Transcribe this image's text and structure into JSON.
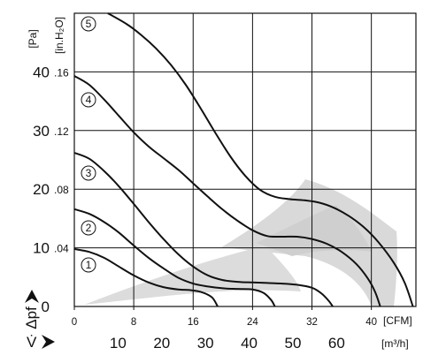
{
  "chart_data": {
    "type": "line",
    "x_axis": {
      "unit_cfm": "[CFM]",
      "ticks_cfm": [
        "0",
        "8",
        "16",
        "24",
        "32",
        "40"
      ],
      "symbol": "V̇",
      "unit_m3h": "[m³/h]",
      "ticks_m3h": [
        "10",
        "20",
        "30",
        "40",
        "50",
        "60"
      ],
      "xlim_cfm": [
        0,
        46
      ]
    },
    "y_axis": {
      "unit_pa": "[Pa]",
      "ticks_pa": [
        "0",
        "10",
        "20",
        "30",
        "40"
      ],
      "unit_inh2o": "[in.H₂O]",
      "ticks_inh2o": [
        ".04",
        ".08",
        ".12",
        ".16"
      ],
      "symbol": "Δpf",
      "ylim_pa": [
        0,
        50
      ]
    },
    "grid": true,
    "series": [
      {
        "name": "1",
        "points": [
          [
            0,
            9.8
          ],
          [
            2,
            9.3
          ],
          [
            4,
            8.3
          ],
          [
            6,
            6.8
          ],
          [
            8,
            5.3
          ],
          [
            10,
            4.1
          ],
          [
            12,
            3.3
          ],
          [
            14,
            2.9
          ],
          [
            15.5,
            2.8
          ],
          [
            17,
            2.5
          ],
          [
            18.5,
            1.6
          ],
          [
            19.3,
            0
          ]
        ]
      },
      {
        "name": "2",
        "points": [
          [
            0,
            16.6
          ],
          [
            2,
            15.8
          ],
          [
            4,
            14.4
          ],
          [
            6,
            12.6
          ],
          [
            8,
            10.4
          ],
          [
            10,
            8.3
          ],
          [
            12,
            6.5
          ],
          [
            14,
            4.9
          ],
          [
            16,
            3.9
          ],
          [
            18,
            3.4
          ],
          [
            20,
            3.1
          ],
          [
            22,
            3.0
          ],
          [
            24,
            2.9
          ],
          [
            25.5,
            2.3
          ],
          [
            26.5,
            1.1
          ],
          [
            27,
            0
          ]
        ]
      },
      {
        "name": "3",
        "points": [
          [
            0,
            26.2
          ],
          [
            2,
            25.2
          ],
          [
            4,
            23.1
          ],
          [
            6,
            20.5
          ],
          [
            8,
            17.5
          ],
          [
            10,
            14.4
          ],
          [
            12,
            11.5
          ],
          [
            14,
            8.9
          ],
          [
            16,
            6.8
          ],
          [
            18,
            5.3
          ],
          [
            20,
            4.5
          ],
          [
            22,
            4.2
          ],
          [
            24,
            4.1
          ],
          [
            26,
            4.0
          ],
          [
            28,
            3.9
          ],
          [
            30,
            3.7
          ],
          [
            32,
            3.2
          ],
          [
            33.3,
            2.2
          ],
          [
            34.3,
            0.9
          ],
          [
            34.8,
            0
          ]
        ]
      },
      {
        "name": "4",
        "points": [
          [
            0,
            39.3
          ],
          [
            2,
            37.8
          ],
          [
            4,
            35.3
          ],
          [
            6,
            32.5
          ],
          [
            8,
            29.7
          ],
          [
            10,
            27.3
          ],
          [
            12,
            25.3
          ],
          [
            14,
            23.3
          ],
          [
            16,
            21.0
          ],
          [
            18,
            18.7
          ],
          [
            20,
            16.5
          ],
          [
            22,
            14.6
          ],
          [
            24,
            13.0
          ],
          [
            26,
            12.0
          ],
          [
            28,
            11.9
          ],
          [
            30,
            11.9
          ],
          [
            32,
            11.5
          ],
          [
            34,
            10.7
          ],
          [
            36,
            9.3
          ],
          [
            38,
            7.2
          ],
          [
            39.5,
            4.8
          ],
          [
            40.5,
            2.5
          ],
          [
            41.2,
            0
          ]
        ]
      },
      {
        "name": "5",
        "points": [
          [
            4.5,
            50
          ],
          [
            7,
            48.2
          ],
          [
            9,
            46.3
          ],
          [
            11,
            44.0
          ],
          [
            13,
            41.2
          ],
          [
            15,
            37.8
          ],
          [
            17,
            33.8
          ],
          [
            19,
            29.6
          ],
          [
            21,
            25.6
          ],
          [
            23,
            22.3
          ],
          [
            25,
            19.9
          ],
          [
            27,
            18.7
          ],
          [
            29,
            18.3
          ],
          [
            31,
            18.1
          ],
          [
            33,
            17.7
          ],
          [
            35,
            16.8
          ],
          [
            37,
            15.4
          ],
          [
            39,
            13.5
          ],
          [
            41,
            10.9
          ],
          [
            43,
            7.5
          ],
          [
            44.5,
            4.0
          ],
          [
            45.6,
            0
          ]
        ]
      }
    ]
  }
}
